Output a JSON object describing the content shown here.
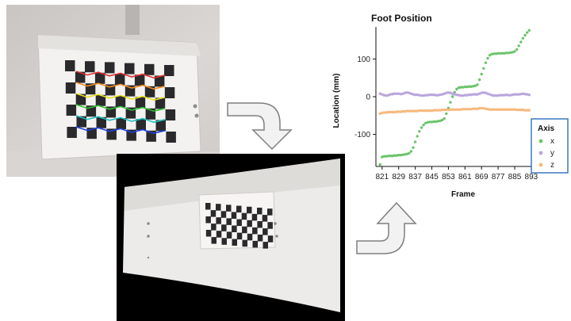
{
  "chart_data": {
    "type": "scatter",
    "title": "Foot Position",
    "xlabel": "Frame",
    "ylabel": "Location (mm)",
    "xlim": [
      818,
      903
    ],
    "ylim": [
      -185,
      185
    ],
    "xticks": [
      821,
      829,
      837,
      845,
      853,
      861,
      869,
      877,
      885,
      893
    ],
    "yticks": [
      100,
      0,
      -100
    ],
    "grid": false,
    "legend": {
      "title": "Axis",
      "position": "bottom-right"
    },
    "series": [
      {
        "name": "x",
        "color": "#6cc46c",
        "points": [
          [
            820,
            -180
          ],
          [
            821,
            -160
          ],
          [
            822,
            -158
          ],
          [
            823,
            -158
          ],
          [
            824,
            -157
          ],
          [
            825,
            -157
          ],
          [
            826,
            -157
          ],
          [
            827,
            -156
          ],
          [
            828,
            -156
          ],
          [
            829,
            -155
          ],
          [
            830,
            -155
          ],
          [
            831,
            -154
          ],
          [
            832,
            -153
          ],
          [
            833,
            -152
          ],
          [
            834,
            -150
          ],
          [
            835,
            -145
          ],
          [
            836,
            -135
          ],
          [
            837,
            -120
          ],
          [
            838,
            -105
          ],
          [
            839,
            -92
          ],
          [
            840,
            -82
          ],
          [
            841,
            -75
          ],
          [
            842,
            -70
          ],
          [
            843,
            -68
          ],
          [
            844,
            -67
          ],
          [
            845,
            -67
          ],
          [
            846,
            -66
          ],
          [
            847,
            -66
          ],
          [
            848,
            -65
          ],
          [
            849,
            -64
          ],
          [
            850,
            -62
          ],
          [
            851,
            -58
          ],
          [
            852,
            -45
          ],
          [
            853,
            -30
          ],
          [
            854,
            -15
          ],
          [
            855,
            0
          ],
          [
            856,
            12
          ],
          [
            857,
            20
          ],
          [
            858,
            24
          ],
          [
            859,
            25
          ],
          [
            860,
            25
          ],
          [
            861,
            26
          ],
          [
            862,
            26
          ],
          [
            863,
            27
          ],
          [
            864,
            27
          ],
          [
            865,
            28
          ],
          [
            866,
            29
          ],
          [
            867,
            32
          ],
          [
            868,
            45
          ],
          [
            869,
            60
          ],
          [
            870,
            75
          ],
          [
            871,
            90
          ],
          [
            872,
            102
          ],
          [
            873,
            110
          ],
          [
            874,
            113
          ],
          [
            875,
            114
          ],
          [
            876,
            114
          ],
          [
            877,
            115
          ],
          [
            878,
            115
          ],
          [
            879,
            115
          ],
          [
            880,
            115
          ],
          [
            881,
            116
          ],
          [
            882,
            116
          ],
          [
            883,
            117
          ],
          [
            884,
            118
          ],
          [
            885,
            120
          ],
          [
            886,
            125
          ],
          [
            887,
            135
          ],
          [
            888,
            145
          ],
          [
            889,
            155
          ],
          [
            890,
            163
          ],
          [
            891,
            170
          ],
          [
            892,
            176
          ]
        ]
      },
      {
        "name": "y",
        "color": "#b9a5dd",
        "points": [
          [
            820,
            8
          ],
          [
            821,
            6
          ],
          [
            822,
            4
          ],
          [
            823,
            3
          ],
          [
            824,
            4
          ],
          [
            825,
            6
          ],
          [
            826,
            7
          ],
          [
            827,
            8
          ],
          [
            828,
            8
          ],
          [
            829,
            8
          ],
          [
            830,
            7
          ],
          [
            831,
            8
          ],
          [
            832,
            10
          ],
          [
            833,
            11
          ],
          [
            834,
            10
          ],
          [
            835,
            8
          ],
          [
            836,
            6
          ],
          [
            837,
            5
          ],
          [
            838,
            5
          ],
          [
            839,
            4
          ],
          [
            840,
            3
          ],
          [
            841,
            3
          ],
          [
            842,
            4
          ],
          [
            843,
            4
          ],
          [
            844,
            5
          ],
          [
            845,
            5
          ],
          [
            846,
            5
          ],
          [
            847,
            4
          ],
          [
            848,
            4
          ],
          [
            849,
            5
          ],
          [
            850,
            6
          ],
          [
            851,
            8
          ],
          [
            852,
            10
          ],
          [
            853,
            11
          ],
          [
            854,
            10
          ],
          [
            855,
            8
          ],
          [
            856,
            6
          ],
          [
            857,
            5
          ],
          [
            858,
            4
          ],
          [
            859,
            3
          ],
          [
            860,
            3
          ],
          [
            861,
            4
          ],
          [
            862,
            4
          ],
          [
            863,
            5
          ],
          [
            864,
            5
          ],
          [
            865,
            6
          ],
          [
            866,
            6
          ],
          [
            867,
            6
          ],
          [
            868,
            8
          ],
          [
            869,
            10
          ],
          [
            870,
            11
          ],
          [
            871,
            10
          ],
          [
            872,
            8
          ],
          [
            873,
            6
          ],
          [
            874,
            4
          ],
          [
            875,
            3
          ],
          [
            876,
            3
          ],
          [
            877,
            3
          ],
          [
            878,
            4
          ],
          [
            879,
            4
          ],
          [
            880,
            4
          ],
          [
            881,
            5
          ],
          [
            882,
            4
          ],
          [
            883,
            4
          ],
          [
            884,
            5
          ],
          [
            885,
            6
          ],
          [
            886,
            6
          ],
          [
            887,
            6
          ],
          [
            888,
            7
          ],
          [
            889,
            8
          ],
          [
            890,
            7
          ],
          [
            891,
            6
          ],
          [
            892,
            5
          ]
        ]
      },
      {
        "name": "z",
        "color": "#f6b97d",
        "points": [
          [
            820,
            -45
          ],
          [
            821,
            -43
          ],
          [
            822,
            -42
          ],
          [
            823,
            -42
          ],
          [
            824,
            -41
          ],
          [
            825,
            -41
          ],
          [
            826,
            -41
          ],
          [
            827,
            -41
          ],
          [
            828,
            -40
          ],
          [
            829,
            -40
          ],
          [
            830,
            -40
          ],
          [
            831,
            -39
          ],
          [
            832,
            -39
          ],
          [
            833,
            -38
          ],
          [
            834,
            -38
          ],
          [
            835,
            -38
          ],
          [
            836,
            -38
          ],
          [
            837,
            -38
          ],
          [
            838,
            -38
          ],
          [
            839,
            -37
          ],
          [
            840,
            -37
          ],
          [
            841,
            -37
          ],
          [
            842,
            -37
          ],
          [
            843,
            -37
          ],
          [
            844,
            -37
          ],
          [
            845,
            -37
          ],
          [
            846,
            -36
          ],
          [
            847,
            -36
          ],
          [
            848,
            -36
          ],
          [
            849,
            -36
          ],
          [
            850,
            -35
          ],
          [
            851,
            -35
          ],
          [
            852,
            -35
          ],
          [
            853,
            -35
          ],
          [
            854,
            -34
          ],
          [
            855,
            -34
          ],
          [
            856,
            -34
          ],
          [
            857,
            -34
          ],
          [
            858,
            -34
          ],
          [
            859,
            -34
          ],
          [
            860,
            -33
          ],
          [
            861,
            -33
          ],
          [
            862,
            -33
          ],
          [
            863,
            -33
          ],
          [
            864,
            -33
          ],
          [
            865,
            -32
          ],
          [
            866,
            -32
          ],
          [
            867,
            -32
          ],
          [
            868,
            -31
          ],
          [
            869,
            -30
          ],
          [
            870,
            -31
          ],
          [
            871,
            -32
          ],
          [
            872,
            -33
          ],
          [
            873,
            -34
          ],
          [
            874,
            -34
          ],
          [
            875,
            -34
          ],
          [
            876,
            -34
          ],
          [
            877,
            -34
          ],
          [
            878,
            -34
          ],
          [
            879,
            -34
          ],
          [
            880,
            -34
          ],
          [
            881,
            -34
          ],
          [
            882,
            -34
          ],
          [
            883,
            -34
          ],
          [
            884,
            -34
          ],
          [
            885,
            -34
          ],
          [
            886,
            -35
          ],
          [
            887,
            -35
          ],
          [
            888,
            -35
          ],
          [
            889,
            -35
          ],
          [
            890,
            -36
          ],
          [
            891,
            -36
          ],
          [
            892,
            -36
          ]
        ]
      }
    ]
  },
  "colors": {
    "legend_border": "#3a78c3",
    "arrow_fill": "#f2f2f2",
    "arrow_stroke": "#7f7f7f",
    "photo_background": "#d4d1cf",
    "paper": "#f4f3f1",
    "checker_dark": "#2a2a2d",
    "grid_line_colors": [
      "#e03030",
      "#f08a20",
      "#e8e020",
      "#30c030",
      "#20c0c0",
      "#2040e0"
    ]
  },
  "icons": {
    "arrow_down": "curved-arrow-down-icon",
    "arrow_up": "curved-arrow-up-icon"
  }
}
